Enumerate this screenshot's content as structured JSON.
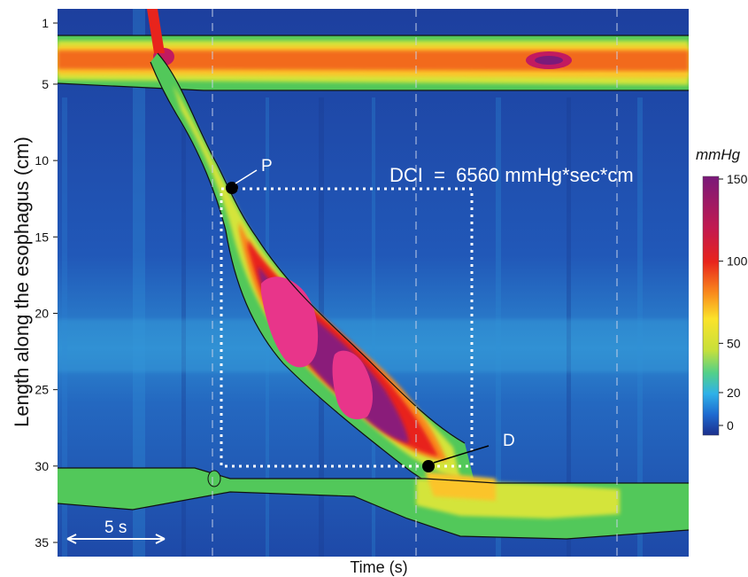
{
  "chart_data": {
    "type": "heatmap",
    "title": "",
    "xlabel": "Time (s)",
    "ylabel": "Length along the esophagus (cm)",
    "yticks": [
      "1",
      "5",
      "10",
      "15",
      "20",
      "25",
      "30",
      "35"
    ],
    "ytick_values": [
      1,
      5,
      10,
      15,
      20,
      25,
      30,
      35
    ],
    "ylim": [
      0,
      36
    ],
    "colorbar": {
      "unit": "mmHg",
      "ticks": [
        "150",
        "100",
        "50",
        "20",
        "0"
      ],
      "tick_values": [
        150,
        100,
        50,
        20,
        0
      ],
      "range": [
        0,
        150
      ],
      "colors": [
        "#1c2f8c",
        "#1e6ad0",
        "#2fb1e8",
        "#52d08a",
        "#c8e03a",
        "#fbe32a",
        "#f98a1c",
        "#e8241c",
        "#c21a50",
        "#7a1a7a"
      ]
    },
    "annotations": {
      "dci_text": "DCI  =  6560 mmHg*sec*cm",
      "point_p_label": "P",
      "point_d_label": "D",
      "scale_bar_label": "5 s"
    },
    "points": [
      {
        "label": "P",
        "x_s": 8.3,
        "y_cm": 11.5
      },
      {
        "label": "D",
        "x_s": 17.3,
        "y_cm": 30.0
      }
    ],
    "dci_box": {
      "x_s": [
        7.8,
        19.4
      ],
      "y_cm": [
        11.5,
        30.0
      ]
    },
    "upper_sphincter_cm": [
      1.5,
      4.5
    ],
    "lower_sphincter_cm": [
      30.0,
      33.5
    ],
    "time_span_s": 29.5
  }
}
